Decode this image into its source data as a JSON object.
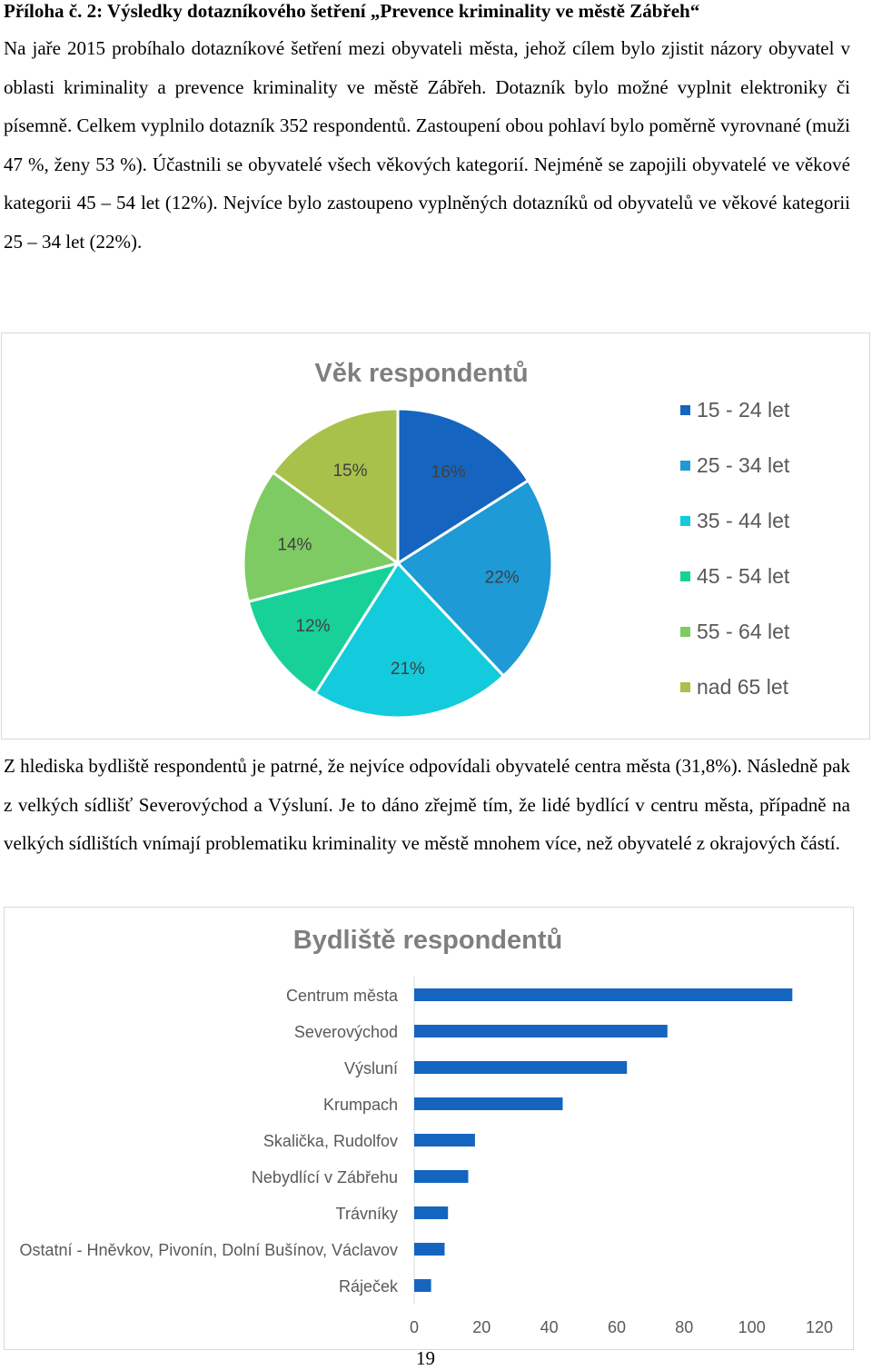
{
  "heading": "Příloha č. 2: Výsledky dotazníkového šetření „Prevence kriminality ve městě Zábřeh“",
  "paragraph1": "Na jaře 2015 probíhalo dotazníkové šetření mezi obyvateli města, jehož cílem bylo zjistit názory obyvatel v oblasti kriminality a prevence kriminality ve městě Zábřeh. Dotazník bylo možné vyplnit elektroniky či písemně. Celkem vyplnilo dotazník 352 respondentů. Zastoupení obou pohlaví bylo poměrně vyrovnané (muži 47 %, ženy 53 %). Účastnili se obyvatelé všech věkových kategorií. Nejméně se zapojili obyvatelé ve věkové kategorii 45 – 54 let (12%). Nejvíce bylo zastoupeno vyplněných dotazníků od obyvatelů ve věkové kategorii 25 – 34 let (22%).",
  "paragraph2": "Z hlediska bydliště respondentů je patrné, že nejvíce odpovídali obyvatelé centra města (31,8%). Následně pak z velkých sídlišť Severovýchod a Výsluní. Je to dáno zřejmě tím, že lidé bydlící v centru města, případně na velkých sídlištích vnímají problematiku kriminality ve městě mnohem více, než obyvatelé z okrajových částí.",
  "page_number": "19",
  "chart_data": [
    {
      "type": "pie",
      "title": "Věk respondentů",
      "categories": [
        "15 - 24 let",
        "25 - 34 let",
        "35 - 44 let",
        "45 - 54 let",
        "55 - 64 let",
        "nad 65 let"
      ],
      "values": [
        16,
        22,
        21,
        12,
        14,
        15
      ],
      "labels": [
        "16%",
        "22%",
        "21%",
        "12%",
        "14%",
        "15%"
      ],
      "colors": [
        "#1565c0",
        "#1e9ad6",
        "#13cbdc",
        "#17d199",
        "#7dcb62",
        "#a8c14a"
      ],
      "legend_position": "right"
    },
    {
      "type": "bar",
      "orientation": "horizontal",
      "title": "Bydliště respondentů",
      "categories": [
        "Centrum města",
        "Severovýchod",
        "Výsluní",
        "Krumpach",
        "Skalička, Rudolfov",
        "Nebydlící v Zábřehu",
        "Trávníky",
        "Ostatní - Hněvkov, Pivonín, Dolní Bušínov, Václavov",
        "Ráječek"
      ],
      "values": [
        112,
        75,
        63,
        44,
        18,
        16,
        10,
        9,
        5
      ],
      "xlim": [
        0,
        120
      ],
      "xticks": [
        "0",
        "20",
        "40",
        "60",
        "80",
        "100",
        "120"
      ],
      "color": "#1565c0",
      "grid": false
    }
  ]
}
